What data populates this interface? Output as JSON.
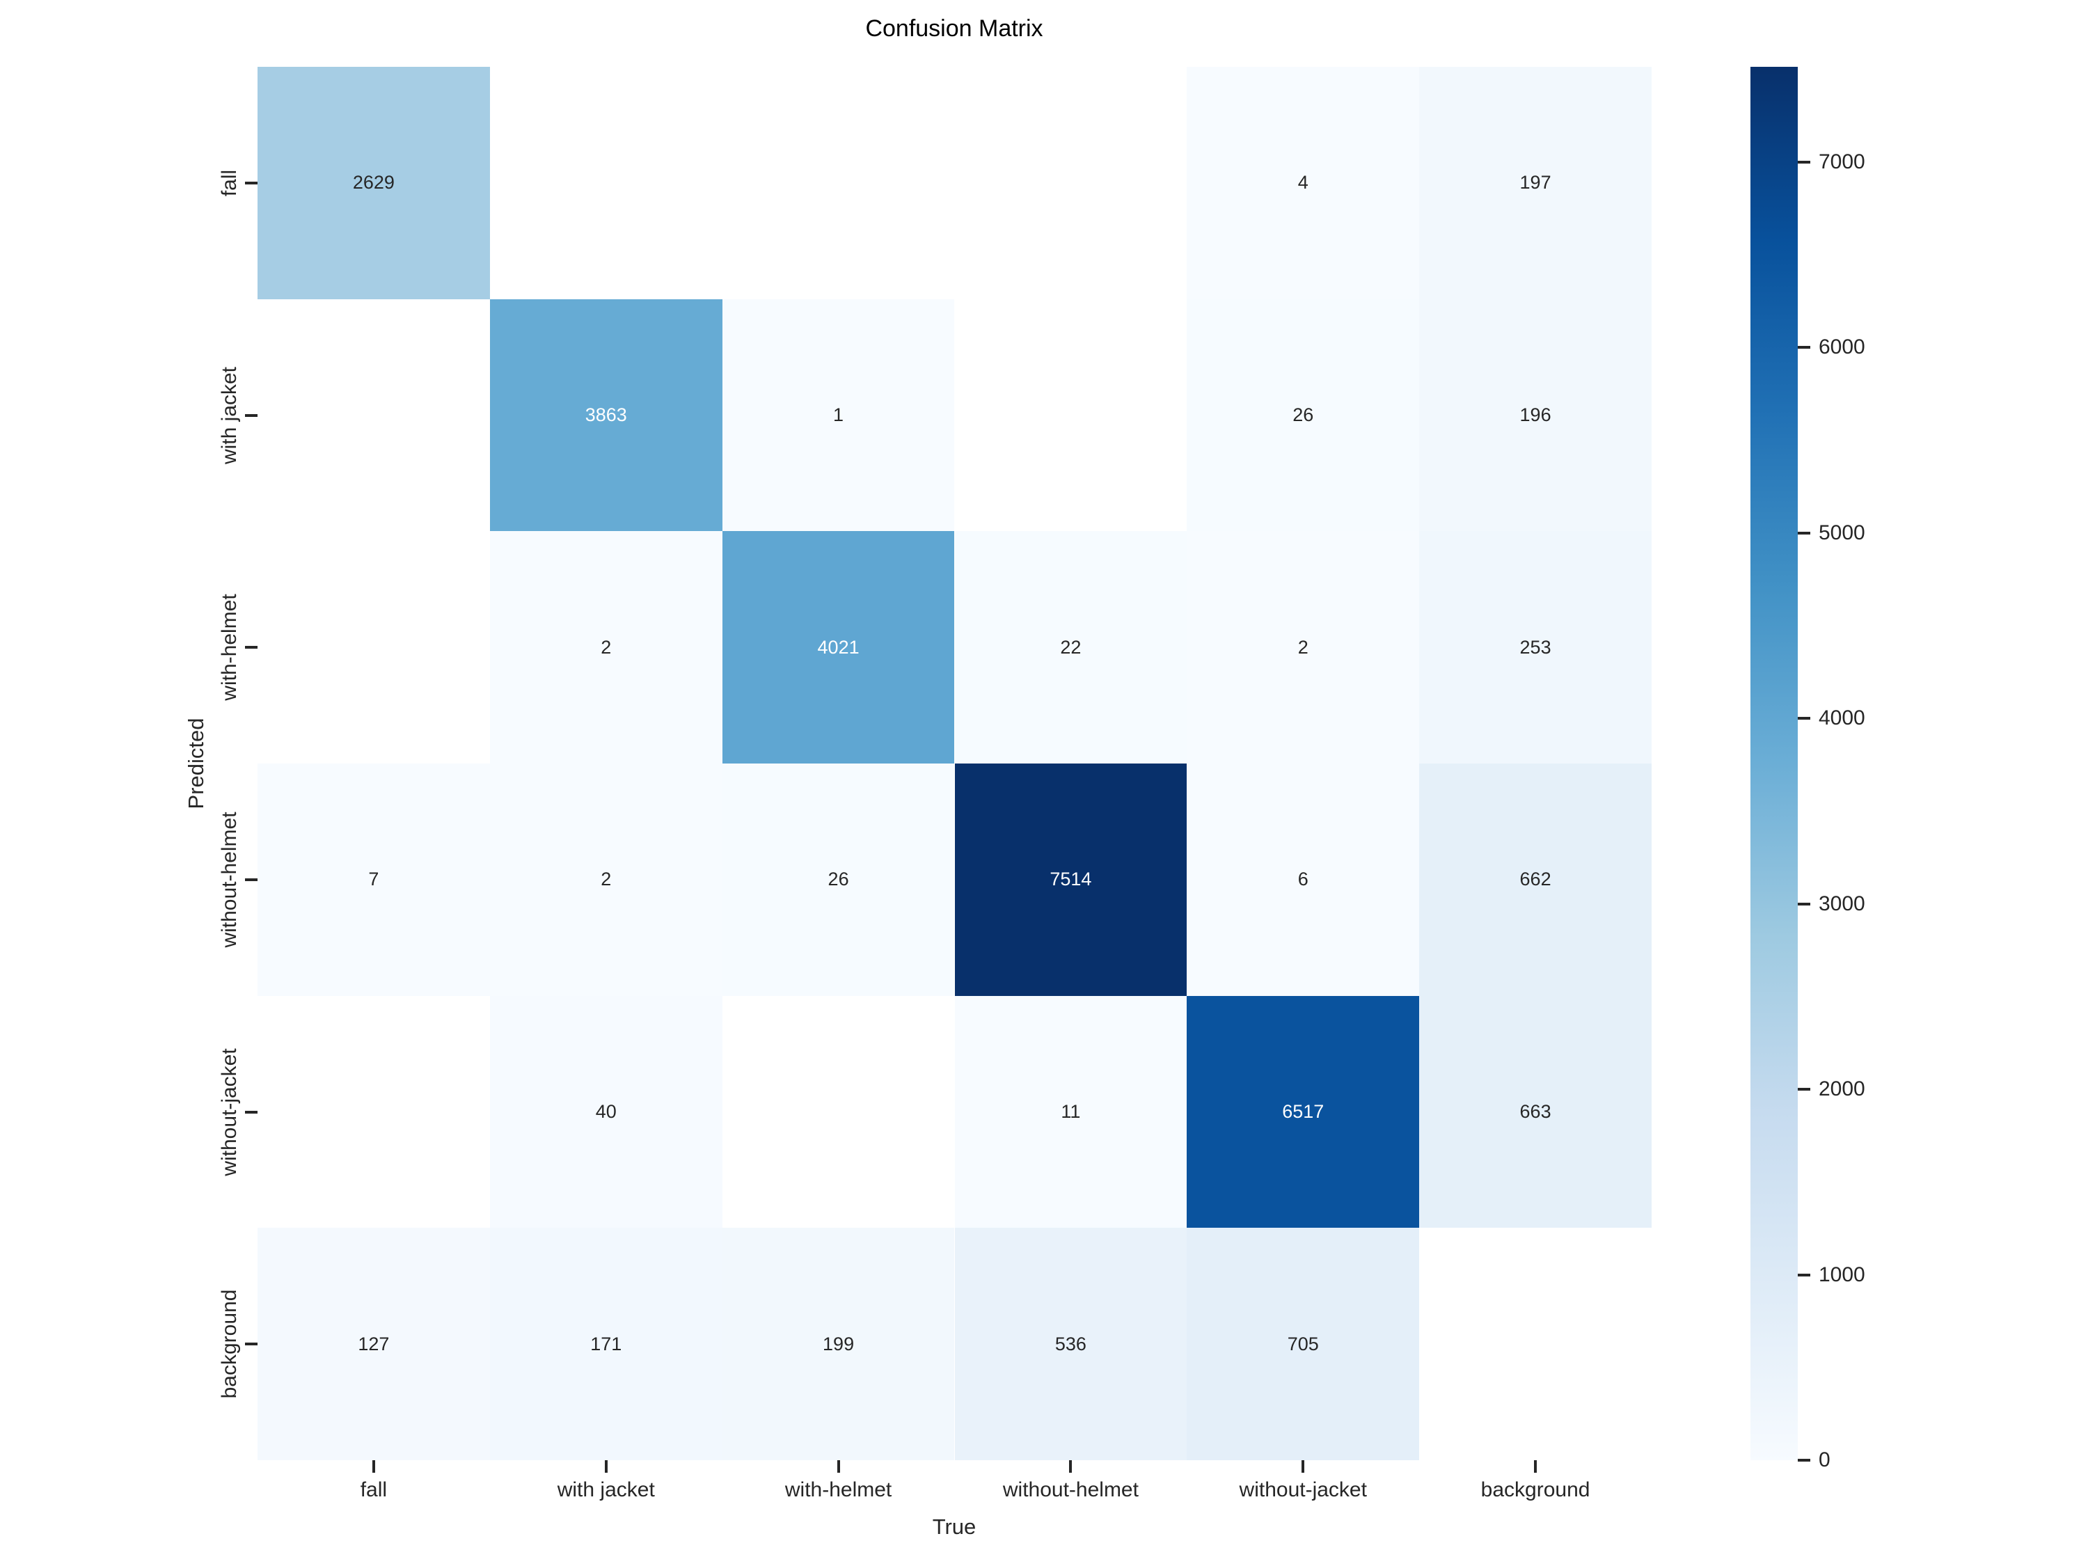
{
  "chart_data": {
    "type": "heatmap",
    "title": "Confusion Matrix",
    "xlabel": "True",
    "ylabel": "Predicted",
    "x_categories": [
      "fall",
      "with jacket",
      "with-helmet",
      "without-helmet",
      "without-jacket",
      "background"
    ],
    "y_categories": [
      "fall",
      "with jacket",
      "with-helmet",
      "without-helmet",
      "without-jacket",
      "background"
    ],
    "matrix": [
      [
        2629,
        null,
        null,
        null,
        4,
        197
      ],
      [
        null,
        3863,
        1,
        null,
        26,
        196
      ],
      [
        null,
        2,
        4021,
        22,
        2,
        253
      ],
      [
        7,
        2,
        26,
        7514,
        6,
        662
      ],
      [
        null,
        40,
        null,
        11,
        6517,
        663
      ],
      [
        127,
        171,
        199,
        536,
        705,
        null
      ]
    ],
    "vmin": 0,
    "vmax": 7514,
    "colormap": "Blues",
    "colormap_stops": [
      "#f7fbff",
      "#deebf7",
      "#c6dbef",
      "#9ecae1",
      "#6baed6",
      "#4292c6",
      "#2171b5",
      "#08519c",
      "#08306b"
    ],
    "masked_cell_color": "#ffffff",
    "annotation_dark_color": "#262626",
    "annotation_light_color": "#ffffff",
    "colorbar": {
      "position": "right",
      "ticks": [
        "0",
        "1000",
        "2000",
        "3000",
        "4000",
        "5000",
        "6000",
        "7000"
      ]
    },
    "grid": false,
    "legend_position": "none"
  }
}
